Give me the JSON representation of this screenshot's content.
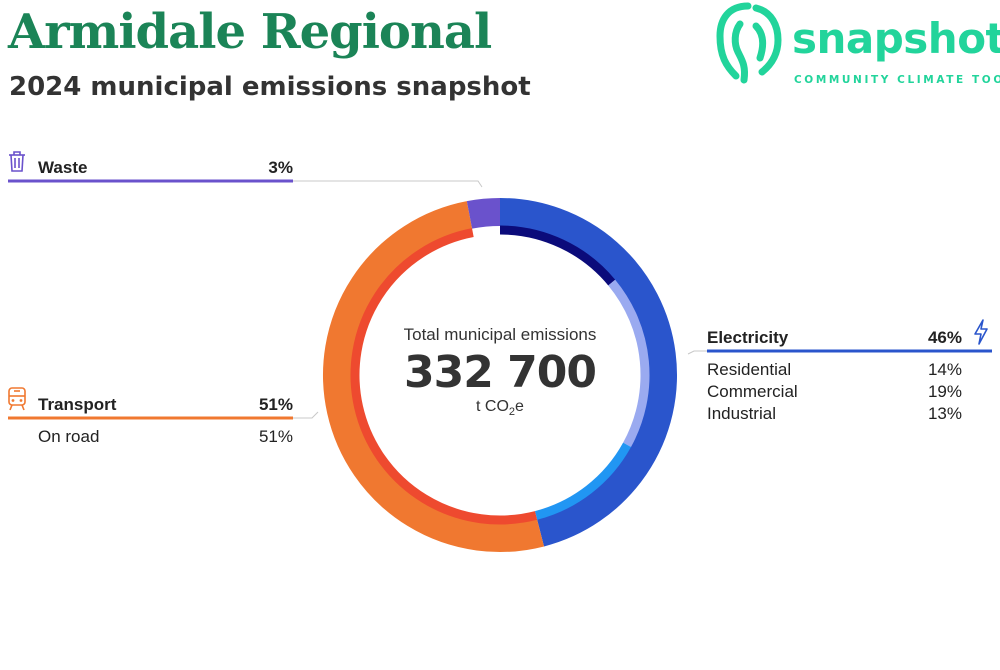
{
  "header": {
    "title": "Armidale Regional",
    "subtitle": "2024 municipal emissions snapshot"
  },
  "logo": {
    "word": "snapshot",
    "tagline": "COMMUNITY CLIMATE TOOL"
  },
  "colors": {
    "title": "#1b8457",
    "logo": "#22d49b",
    "waste": "#6a52cc",
    "transport": "#f07830",
    "transport_inner": "#ee4a2f",
    "electricity": "#2a55cc",
    "residential": "#0b0b7a",
    "commercial": "#9aaaf0",
    "industrial": "#2196f3"
  },
  "center": {
    "label": "Total municipal emissions",
    "value": "332 700",
    "unit": "t CO",
    "unit_sub": "2",
    "unit_end": "e"
  },
  "chart_data": {
    "type": "pie",
    "title": "Total municipal emissions",
    "total": 332700,
    "unit": "t CO2e",
    "categories": [
      {
        "name": "Electricity",
        "percent": 46,
        "label": "46%",
        "subcategories": [
          {
            "name": "Residential",
            "percent": 14,
            "label": "14%"
          },
          {
            "name": "Commercial",
            "percent": 19,
            "label": "19%"
          },
          {
            "name": "Industrial",
            "percent": 13,
            "label": "13%"
          }
        ]
      },
      {
        "name": "Transport",
        "percent": 51,
        "label": "51%",
        "subcategories": [
          {
            "name": "On road",
            "percent": 51,
            "label": "51%"
          }
        ]
      },
      {
        "name": "Waste",
        "percent": 3,
        "label": "3%",
        "subcategories": []
      }
    ]
  },
  "icons": {
    "waste": "trash-bin-icon",
    "transport": "train-icon",
    "electricity": "lightning-bolt-icon"
  }
}
